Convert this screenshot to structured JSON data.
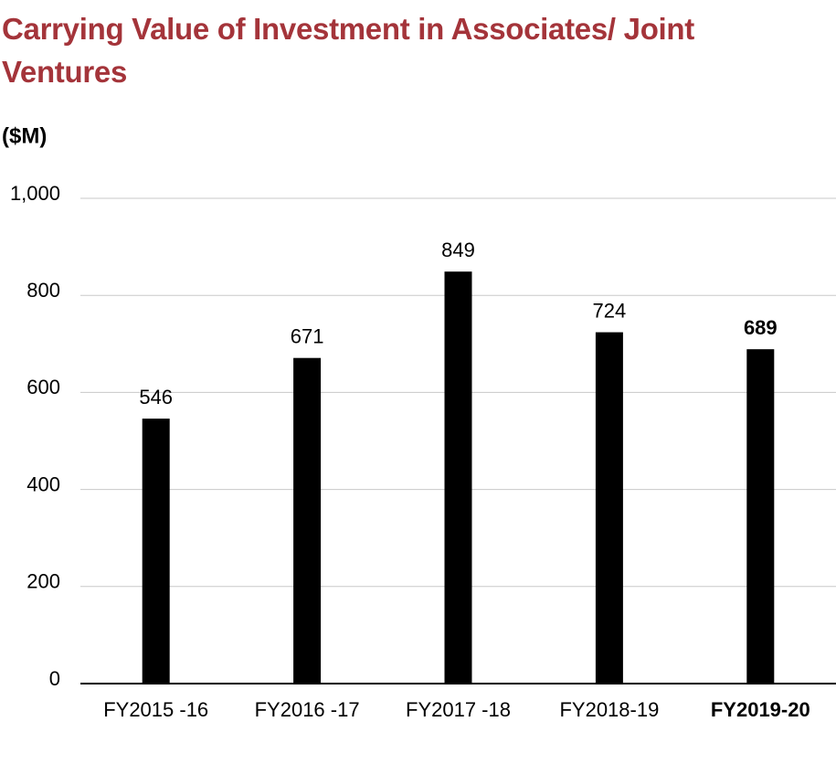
{
  "chart_data": {
    "type": "bar",
    "title": "Carrying Value of Investment in Associates/ Joint Ventures",
    "y_label": "($M)",
    "categories": [
      "FY2015 -16",
      "FY2016 -17",
      "FY2017 -18",
      "FY2018-19",
      "FY2019-20"
    ],
    "values": [
      546,
      671,
      849,
      724,
      689
    ],
    "color": "#000000",
    "emphasis_index": 4,
    "ylim": [
      0,
      1000
    ],
    "yticks": [
      0,
      200,
      400,
      600,
      800,
      {
        "value": 1000,
        "label": "1,000"
      }
    ],
    "grid": true
  }
}
